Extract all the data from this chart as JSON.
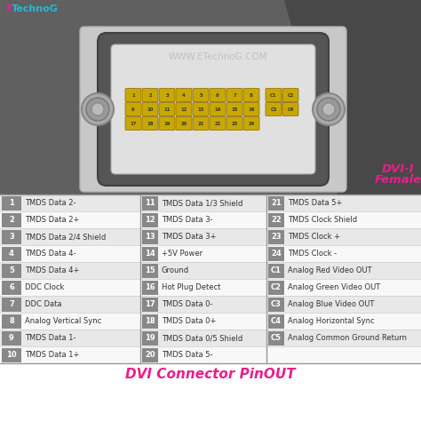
{
  "title": "DVI Connector PinOUT",
  "title_color": "#E91E8C",
  "website": "WWW.ETechnoG.COM",
  "dvi_label_color": "#E91E8C",
  "bg_color": "#ffffff",
  "table_bg_odd": "#e8e8e8",
  "table_bg_even": "#f8f8f8",
  "pin_color": "#c8a800",
  "connector_top_bg": "#606060",
  "connector_face_bg": "#c8c8c8",
  "connector_body_dark": "#555555",
  "connector_inner_white": "#e8e8e8",
  "rows": [
    {
      "num": "1",
      "col": 1,
      "desc": "TMDS Data 2-"
    },
    {
      "num": "2",
      "col": 1,
      "desc": "TMDS Data 2+"
    },
    {
      "num": "3",
      "col": 1,
      "desc": "TMDS Data 2/4 Shield"
    },
    {
      "num": "4",
      "col": 1,
      "desc": "TMDS Data 4-"
    },
    {
      "num": "5",
      "col": 1,
      "desc": "TMDS Data 4+"
    },
    {
      "num": "6",
      "col": 1,
      "desc": "DDC Clock"
    },
    {
      "num": "7",
      "col": 1,
      "desc": "DDC Data"
    },
    {
      "num": "8",
      "col": 1,
      "desc": "Analog Vertical Sync"
    },
    {
      "num": "9",
      "col": 1,
      "desc": "TMDS Data 1-"
    },
    {
      "num": "10",
      "col": 1,
      "desc": "TMDS Data 1+"
    },
    {
      "num": "11",
      "col": 2,
      "desc": "TMDS Data 1/3 Shield"
    },
    {
      "num": "12",
      "col": 2,
      "desc": "TMDS Data 3-"
    },
    {
      "num": "13",
      "col": 2,
      "desc": "TMDS Data 3+"
    },
    {
      "num": "14",
      "col": 2,
      "desc": "+5V Power"
    },
    {
      "num": "15",
      "col": 2,
      "desc": "Ground"
    },
    {
      "num": "16",
      "col": 2,
      "desc": "Hot Plug Detect"
    },
    {
      "num": "17",
      "col": 2,
      "desc": "TMDS Data 0-"
    },
    {
      "num": "18",
      "col": 2,
      "desc": "TMDS Data 0+"
    },
    {
      "num": "19",
      "col": 2,
      "desc": "TMDS Data 0/5 Shield"
    },
    {
      "num": "20",
      "col": 2,
      "desc": "TMDS Data 5-"
    },
    {
      "num": "21",
      "col": 3,
      "desc": "TMDS Data 5+"
    },
    {
      "num": "22",
      "col": 3,
      "desc": "TMDS Clock Shield"
    },
    {
      "num": "23",
      "col": 3,
      "desc": "TMDS Clock +"
    },
    {
      "num": "24",
      "col": 3,
      "desc": "TMDS Clock -"
    },
    {
      "num": "C1",
      "col": 3,
      "desc": "Analog Red Video OUT"
    },
    {
      "num": "C2",
      "col": 3,
      "desc": "Analog Green Video OUT"
    },
    {
      "num": "C3",
      "col": 3,
      "desc": "Analog Blue Video OUT"
    },
    {
      "num": "C4",
      "col": 3,
      "desc": "Analog Horizontal Sync"
    },
    {
      "num": "C5",
      "col": 3,
      "desc": "Analog Common Ground Return"
    }
  ],
  "pin_grid_row1": [
    "1",
    "2",
    "3",
    "4",
    "5",
    "6",
    "7",
    "8"
  ],
  "pin_grid_row2": [
    "9",
    "10",
    "11",
    "12",
    "13",
    "14",
    "15",
    "16"
  ],
  "pin_grid_row3": [
    "17",
    "18",
    "19",
    "20",
    "21",
    "22",
    "23",
    "24"
  ],
  "pin_grid_analog": [
    [
      "C1",
      "C2"
    ],
    [
      "C3",
      "C4"
    ]
  ]
}
